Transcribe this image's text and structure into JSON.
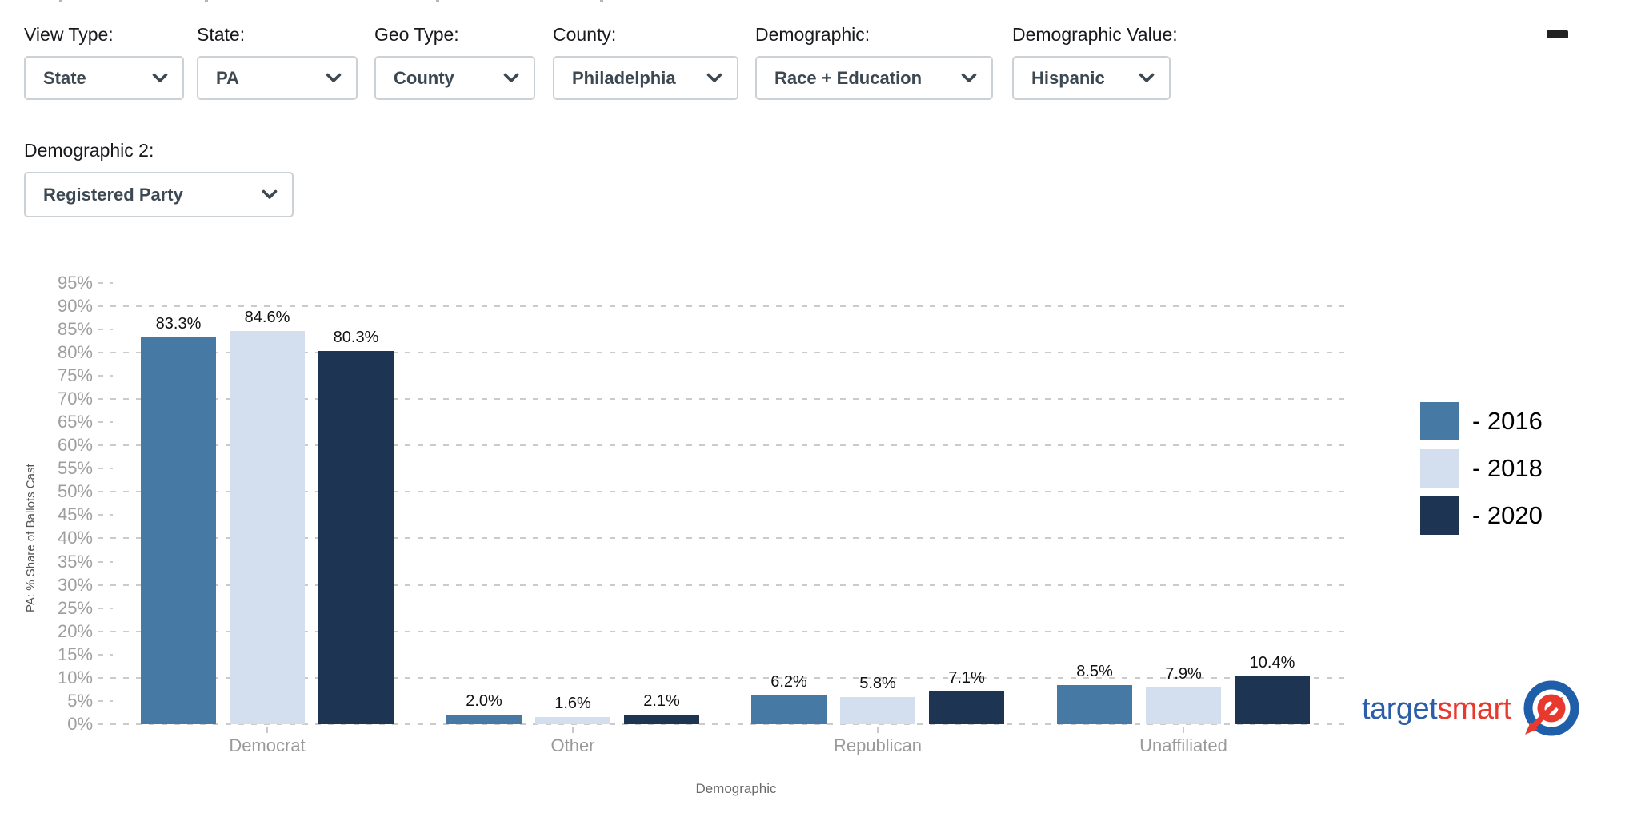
{
  "header": {
    "minimize_icon": "minus-icon"
  },
  "filters": {
    "row1": [
      {
        "label": "View Type:",
        "value": "State"
      },
      {
        "label": "State:",
        "value": "PA"
      },
      {
        "label": "Geo Type:",
        "value": "County"
      },
      {
        "label": "County:",
        "value": "Philadelphia"
      },
      {
        "label": "Demographic:",
        "value": "Race + Education"
      },
      {
        "label": "Demographic Value:",
        "value": "Hispanic"
      }
    ],
    "row2": [
      {
        "label": "Demographic 2:",
        "value": "Registered Party"
      }
    ],
    "chevron_icon": "chevron-down-icon"
  },
  "chart_data": {
    "type": "bar",
    "categories": [
      "Democrat",
      "Other",
      "Republican",
      "Unaffiliated"
    ],
    "series": [
      {
        "name": "2016",
        "color": "#4679A4",
        "values": [
          83.3,
          2.0,
          6.2,
          8.5
        ]
      },
      {
        "name": "2018",
        "color": "#D3DFEF",
        "values": [
          84.6,
          1.6,
          5.8,
          7.9
        ]
      },
      {
        "name": "2020",
        "color": "#1D3552",
        "values": [
          80.3,
          2.1,
          7.1,
          10.4
        ]
      }
    ],
    "value_labels": [
      [
        "83.3%",
        "2.0%",
        "6.2%",
        "8.5%"
      ],
      [
        "84.6%",
        "1.6%",
        "5.8%",
        "7.9%"
      ],
      [
        "80.3%",
        "2.1%",
        "7.1%",
        "10.4%"
      ]
    ],
    "title": "",
    "xlabel": "Demographic",
    "ylabel": "PA: % Share of Ballots Cast",
    "ylim": [
      0,
      100
    ],
    "ytick_step": 5,
    "ytick_max": 95,
    "ytick_suffix": "%",
    "grid": "horizontal dashed lines at 10% steps, short dashed ticks at 5% steps",
    "legend_position": "right",
    "legend": [
      {
        "label": "- 2016",
        "color": "#4679A4"
      },
      {
        "label": "- 2018",
        "color": "#D3DFEF"
      },
      {
        "label": "- 2020",
        "color": "#1D3552"
      }
    ]
  },
  "logo": {
    "target": "target",
    "smart": "smart",
    "target_color": "#2b5da8",
    "smart_color": "#e8392e",
    "bullseye_icon": "bullseye-arrow-icon"
  }
}
